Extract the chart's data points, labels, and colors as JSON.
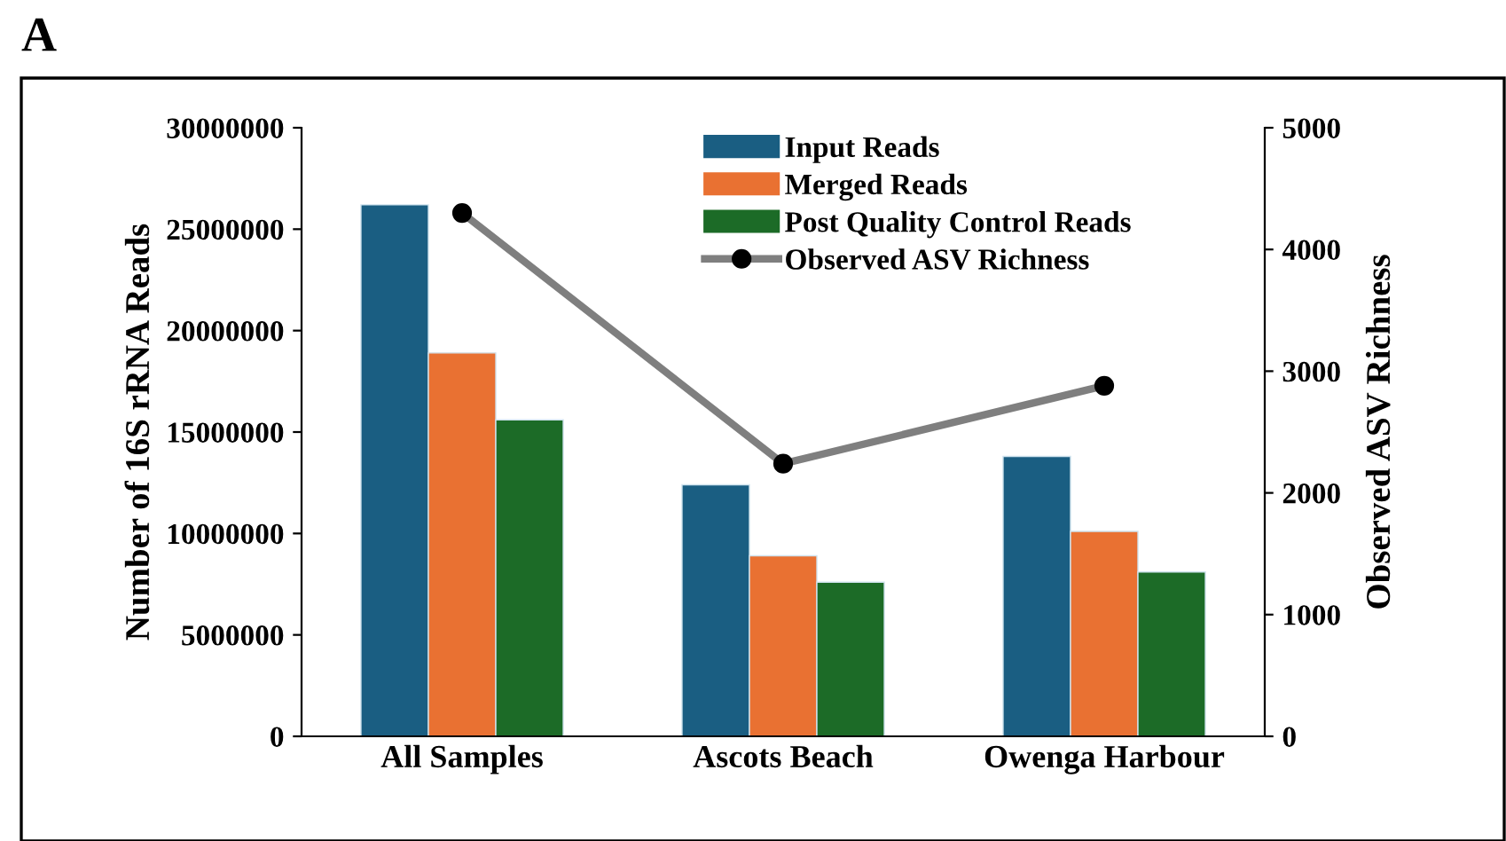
{
  "chart_data": {
    "type": "bar",
    "annotations": [
      "A"
    ],
    "categories": [
      "All Samples",
      "Ascots Beach",
      "Owenga Harbour"
    ],
    "series": [
      {
        "name": "Input Reads",
        "color": "#1a5e82",
        "values": [
          26200000,
          12400000,
          13800000
        ]
      },
      {
        "name": "Merged Reads",
        "color": "#e97132",
        "values": [
          18900000,
          8900000,
          10100000
        ]
      },
      {
        "name": "Post Quality Control Reads",
        "color": "#1c6b27",
        "values": [
          15600000,
          7600000,
          8100000
        ]
      },
      {
        "name": "Observed ASV Richness",
        "color": "#7f7f7f",
        "type": "line",
        "axis": "y2",
        "marker": "circle",
        "values": [
          4300,
          2240,
          2880
        ]
      }
    ],
    "ylabel": "Number of 16S rRNA Reads",
    "y2label": "Observed ASV Richness",
    "ylim": [
      0,
      30000000
    ],
    "yticks": [
      0,
      5000000,
      10000000,
      15000000,
      20000000,
      25000000,
      30000000
    ],
    "y2lim": [
      0,
      5000
    ],
    "y2ticks": [
      0,
      1000,
      2000,
      3000,
      4000,
      5000
    ],
    "grid": false,
    "legend": "top"
  }
}
